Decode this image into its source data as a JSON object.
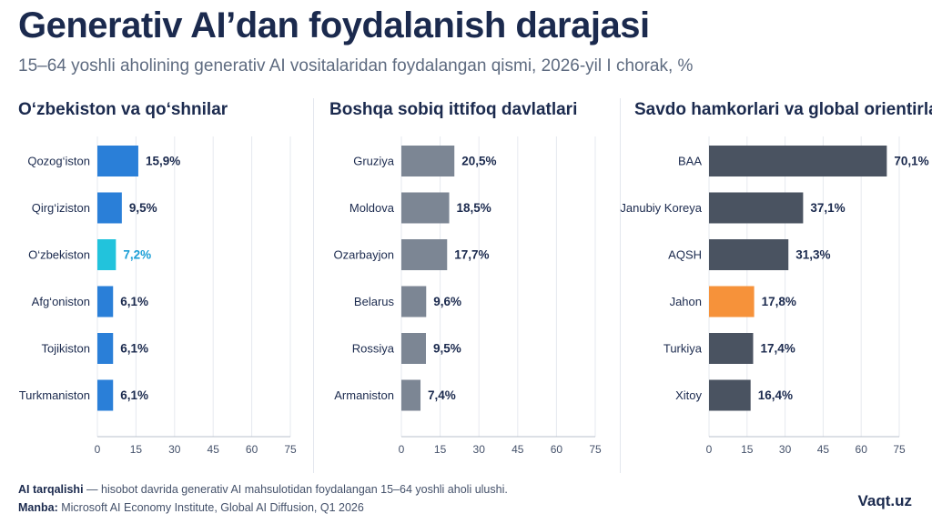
{
  "header": {
    "title": "Generativ AI’dan foydalanish darajasi",
    "subtitle": "15–64 yoshli aholining generativ AI vositalaridan foydalangan qismi, 2026-yil I chorak, %"
  },
  "footer": {
    "definition_term": "AI tarqalishi",
    "definition_text": " — hisobot davrida generativ AI mahsulotidan foydalangan 15–64 yoshli aholi ulushi.",
    "source_label": "Manba:",
    "source_text": " Microsoft AI Economy Institute, Global AI Diffusion, Q1 2026",
    "brand": "Vaqt.uz"
  },
  "colors": {
    "blue": "#2a7fd8",
    "cyan": "#22c3dc",
    "slate": "#7c8694",
    "charcoal": "#4a5361",
    "orange": "#f6923a",
    "label_dark": "#1b2a4e",
    "label_cyan": "#1a9ed6"
  },
  "chart_data": [
    {
      "type": "bar",
      "orientation": "horizontal",
      "title": "O‘zbekiston va qo‘shnilar",
      "categories": [
        "Qozog‘iston",
        "Qirg‘iziston",
        "O‘zbekiston",
        "Afg‘oniston",
        "Tojikiston",
        "Turkmaniston"
      ],
      "values": [
        15.9,
        9.5,
        7.2,
        6.1,
        6.1,
        6.1
      ],
      "value_labels": [
        "15,9%",
        "9,5%",
        "7,2%",
        "6,1%",
        "6,1%",
        "6,1%"
      ],
      "bar_colors": [
        "#2a7fd8",
        "#2a7fd8",
        "#22c3dc",
        "#2a7fd8",
        "#2a7fd8",
        "#2a7fd8"
      ],
      "highlight": "O‘zbekiston",
      "xlim": [
        0,
        75
      ],
      "xticks": [
        0,
        15,
        30,
        45,
        60,
        75
      ],
      "grid": true
    },
    {
      "type": "bar",
      "orientation": "horizontal",
      "title": "Boshqa sobiq ittifoq davlatlari",
      "categories": [
        "Gruziya",
        "Moldova",
        "Ozarbayjon",
        "Belarus",
        "Rossiya",
        "Armaniston"
      ],
      "values": [
        20.5,
        18.5,
        17.7,
        9.6,
        9.5,
        7.4
      ],
      "value_labels": [
        "20,5%",
        "18,5%",
        "17,7%",
        "9,6%",
        "9,5%",
        "7,4%"
      ],
      "bar_colors": [
        "#7c8694",
        "#7c8694",
        "#7c8694",
        "#7c8694",
        "#7c8694",
        "#7c8694"
      ],
      "xlim": [
        0,
        75
      ],
      "xticks": [
        0,
        15,
        30,
        45,
        60,
        75
      ],
      "grid": true
    },
    {
      "type": "bar",
      "orientation": "horizontal",
      "title": "Savdo hamkorlari va global orientirlar",
      "categories": [
        "BAA",
        "Janubiy Koreya",
        "AQSH",
        "Jahon",
        "Turkiya",
        "Xitoy"
      ],
      "values": [
        70.1,
        37.1,
        31.3,
        17.8,
        17.4,
        16.4
      ],
      "value_labels": [
        "70,1%",
        "37,1%",
        "31,3%",
        "17,8%",
        "17,4%",
        "16,4%"
      ],
      "bar_colors": [
        "#4a5361",
        "#4a5361",
        "#4a5361",
        "#f6923a",
        "#4a5361",
        "#4a5361"
      ],
      "highlight": "Jahon",
      "xlim": [
        0,
        75
      ],
      "xticks": [
        0,
        15,
        30,
        45,
        60,
        75
      ],
      "grid": true
    }
  ]
}
